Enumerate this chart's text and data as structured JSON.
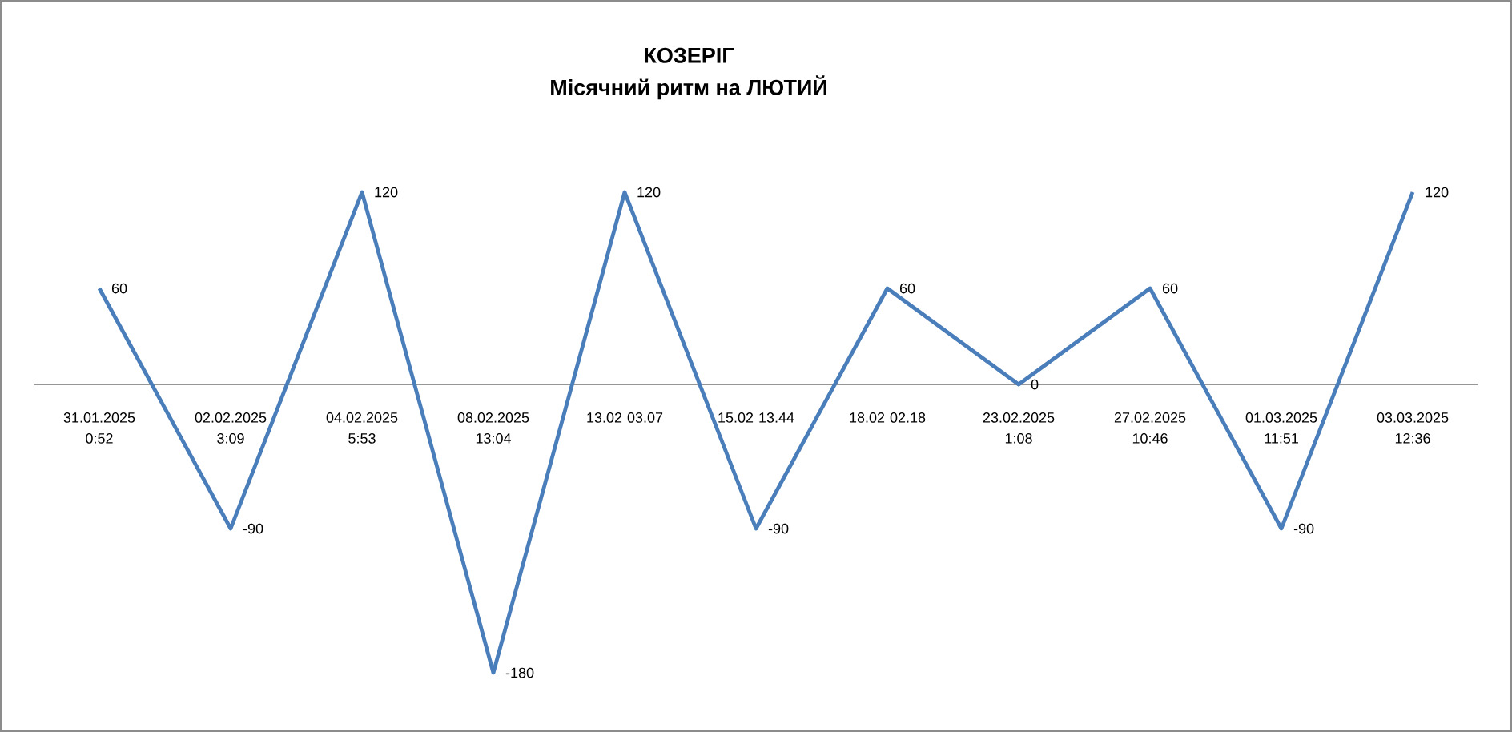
{
  "chart_data": {
    "type": "line",
    "title": "КОЗЕРІГ",
    "subtitle": "Місячний ритм на ЛЮТИЙ",
    "categories": [
      "31.01.2025 0:52",
      "02.02.2025 3:09",
      "04.02.2025 5:53",
      "08.02.2025 13:04",
      "13.02 03.07",
      "15.02 13.44",
      "18.02 02.18",
      "23.02.2025 1:08",
      "27.02.2025 10:46",
      "01.03.2025 11:51",
      "03.03.2025 12:36"
    ],
    "values": [
      60,
      -90,
      120,
      -180,
      120,
      -90,
      60,
      0,
      60,
      -90,
      120
    ],
    "color": "#4a7ebb",
    "marker": "none",
    "data_labels": true
  }
}
